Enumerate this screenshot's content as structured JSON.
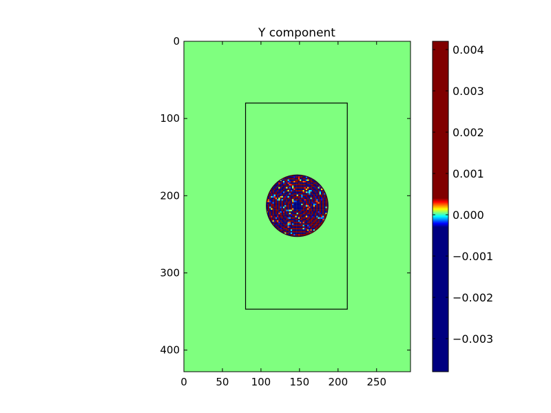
{
  "chart_data": {
    "type": "heatmap",
    "title": "Y component",
    "xlabel": "",
    "ylabel": "",
    "xlim": [
      0,
      294
    ],
    "ylim": [
      428,
      0
    ],
    "x_ticks": [
      0,
      50,
      100,
      150,
      200,
      250
    ],
    "y_ticks": [
      0,
      100,
      200,
      300,
      400
    ],
    "background_value": 0.0,
    "rectangle": {
      "x0": 80,
      "x1": 212,
      "y0": 80,
      "y1": 347
    },
    "wave_disc": {
      "center_x": 147,
      "center_y": 213,
      "radius": 40,
      "value_range": [
        -0.0038,
        0.0042
      ],
      "pattern": "dense oscillating ring pattern of positive/negative values"
    },
    "colormap": "jet",
    "colorbar": {
      "vmin": -0.0038,
      "vmax": 0.0042,
      "ticks": [
        -0.003,
        -0.002,
        -0.001,
        0.0,
        0.001,
        0.002,
        0.003,
        0.004
      ],
      "tick_labels": [
        "−0.003",
        "−0.002",
        "−0.001",
        "0.000",
        "0.001",
        "0.002",
        "0.003",
        "0.004"
      ],
      "display_range": [
        -0.0003,
        0.0004
      ],
      "position": "right"
    },
    "grid": false,
    "colors": {
      "background_field": "#7fff7f",
      "frame": "#000000"
    }
  }
}
